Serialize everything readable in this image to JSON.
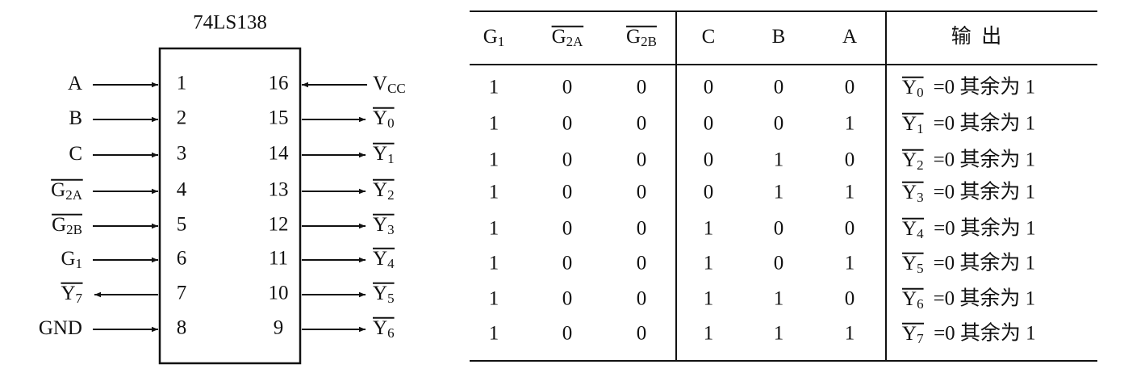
{
  "chip": {
    "name": "74LS138",
    "left_pins": [
      {
        "label": {
          "text": "A"
        },
        "number": 1,
        "direction": "in"
      },
      {
        "label": {
          "text": "B"
        },
        "number": 2,
        "direction": "in"
      },
      {
        "label": {
          "text": "C"
        },
        "number": 3,
        "direction": "in"
      },
      {
        "label": {
          "text": "G",
          "sub": "2A",
          "overline": true
        },
        "number": 4,
        "direction": "in"
      },
      {
        "label": {
          "text": "G",
          "sub": "2B",
          "overline": true
        },
        "number": 5,
        "direction": "in"
      },
      {
        "label": {
          "text": "G",
          "sub": "1"
        },
        "number": 6,
        "direction": "in"
      },
      {
        "label": {
          "text": "Y",
          "sub": "7",
          "overline": true
        },
        "number": 7,
        "direction": "out"
      },
      {
        "label": {
          "text": "GND"
        },
        "number": 8,
        "direction": "in"
      }
    ],
    "right_pins": [
      {
        "label": {
          "text": "V",
          "sub": "CC"
        },
        "number": 16,
        "direction": "in"
      },
      {
        "label": {
          "text": "Y",
          "sub": "0",
          "overline": true
        },
        "number": 15,
        "direction": "out"
      },
      {
        "label": {
          "text": "Y",
          "sub": "1",
          "overline": true
        },
        "number": 14,
        "direction": "out"
      },
      {
        "label": {
          "text": "Y",
          "sub": "2",
          "overline": true
        },
        "number": 13,
        "direction": "out"
      },
      {
        "label": {
          "text": "Y",
          "sub": "3",
          "overline": true
        },
        "number": 12,
        "direction": "out"
      },
      {
        "label": {
          "text": "Y",
          "sub": "4",
          "overline": true
        },
        "number": 11,
        "direction": "out"
      },
      {
        "label": {
          "text": "Y",
          "sub": "5",
          "overline": true
        },
        "number": 10,
        "direction": "out"
      },
      {
        "label": {
          "text": "Y",
          "sub": "6",
          "overline": true
        },
        "number": 9,
        "direction": "out"
      }
    ]
  },
  "table": {
    "header": [
      {
        "text": "G",
        "sub": "1"
      },
      {
        "text": "G",
        "sub": "2A",
        "overline": true
      },
      {
        "text": "G",
        "sub": "2B",
        "overline": true
      },
      {
        "text": "C"
      },
      {
        "text": "B"
      },
      {
        "text": "A"
      },
      {
        "text": "输  出"
      }
    ],
    "rows": [
      {
        "inputs": [
          1,
          0,
          0,
          0,
          0,
          0
        ],
        "output": {
          "text": "Y",
          "sub": "0",
          "overline": true,
          "rest": "=0 其余为 1"
        }
      },
      {
        "inputs": [
          1,
          0,
          0,
          0,
          0,
          1
        ],
        "output": {
          "text": "Y",
          "sub": "1",
          "overline": true,
          "rest": "=0 其余为 1"
        }
      },
      {
        "inputs": [
          1,
          0,
          0,
          0,
          1,
          0
        ],
        "output": {
          "text": "Y",
          "sub": "2",
          "overline": true,
          "rest": "=0 其余为 1"
        }
      },
      {
        "inputs": [
          1,
          0,
          0,
          0,
          1,
          1
        ],
        "output": {
          "text": "Y",
          "sub": "3",
          "overline": true,
          "rest": "=0 其余为 1"
        }
      },
      {
        "inputs": [
          1,
          0,
          0,
          1,
          0,
          0
        ],
        "output": {
          "text": "Y",
          "sub": "4",
          "overline": true,
          "rest": "=0 其余为 1"
        }
      },
      {
        "inputs": [
          1,
          0,
          0,
          1,
          0,
          1
        ],
        "output": {
          "text": "Y",
          "sub": "5",
          "overline": true,
          "rest": "=0 其余为 1"
        }
      },
      {
        "inputs": [
          1,
          0,
          0,
          1,
          1,
          0
        ],
        "output": {
          "text": "Y",
          "sub": "6",
          "overline": true,
          "rest": "=0 其余为 1"
        }
      },
      {
        "inputs": [
          1,
          0,
          0,
          1,
          1,
          1
        ],
        "output": {
          "text": "Y",
          "sub": "7",
          "overline": true,
          "rest": "=0 其余为 1"
        }
      }
    ]
  }
}
